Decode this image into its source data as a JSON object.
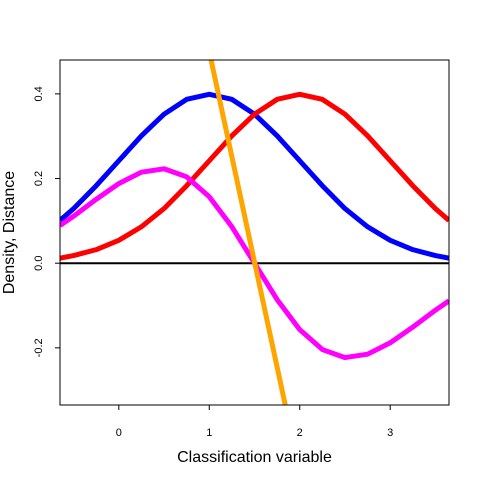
{
  "chart_data": {
    "type": "line",
    "title": "",
    "xlabel": "Classification variable",
    "ylabel": "Density, Distance",
    "xlim": [
      -0.65,
      3.65
    ],
    "ylim": [
      -0.335,
      0.48
    ],
    "grid": false,
    "x_ticks": [
      0,
      1,
      2,
      3
    ],
    "y_ticks": [
      -0.2,
      0.0,
      0.2,
      0.4
    ],
    "x_tick_labels": [
      "0",
      "1",
      "2",
      "3"
    ],
    "y_tick_labels": [
      "-0.2",
      "0.0",
      "0.2",
      "0.4"
    ],
    "reference_line": {
      "y": 0,
      "color": "#000000"
    },
    "series": [
      {
        "color": "#0000ff",
        "x": [
          -0.65,
          -0.5,
          -0.25,
          0,
          0.25,
          0.5,
          0.75,
          1,
          1.25,
          1.5,
          1.75,
          2,
          2.25,
          2.5,
          2.75,
          3,
          3.25,
          3.5,
          3.65
        ],
        "y": [
          0.101,
          0.129,
          0.183,
          0.242,
          0.301,
          0.352,
          0.387,
          0.399,
          0.387,
          0.352,
          0.301,
          0.242,
          0.183,
          0.129,
          0.086,
          0.054,
          0.032,
          0.018,
          0.012
        ]
      },
      {
        "color": "#ff0000",
        "x": [
          -0.65,
          -0.5,
          -0.25,
          0,
          0.25,
          0.5,
          0.75,
          1,
          1.25,
          1.5,
          1.75,
          2,
          2.25,
          2.5,
          2.75,
          3,
          3.25,
          3.5,
          3.65
        ],
        "y": [
          0.012,
          0.018,
          0.032,
          0.054,
          0.086,
          0.129,
          0.183,
          0.242,
          0.301,
          0.352,
          0.387,
          0.399,
          0.387,
          0.352,
          0.301,
          0.242,
          0.183,
          0.129,
          0.101
        ]
      },
      {
        "color": "#ff00ff",
        "x": [
          -0.65,
          -0.5,
          -0.25,
          0,
          0.25,
          0.5,
          0.75,
          1,
          1.25,
          1.5,
          1.75,
          2,
          2.25,
          2.5,
          2.75,
          3,
          3.25,
          3.5,
          3.65
        ],
        "y": [
          0.089,
          0.111,
          0.151,
          0.188,
          0.215,
          0.223,
          0.204,
          0.157,
          0.086,
          0.0,
          -0.086,
          -0.157,
          -0.204,
          -0.223,
          -0.215,
          -0.188,
          -0.151,
          -0.111,
          -0.089
        ]
      },
      {
        "color": "#ffa500",
        "x": [
          1.02,
          1.84
        ],
        "y": [
          0.48,
          -0.335
        ]
      }
    ]
  }
}
